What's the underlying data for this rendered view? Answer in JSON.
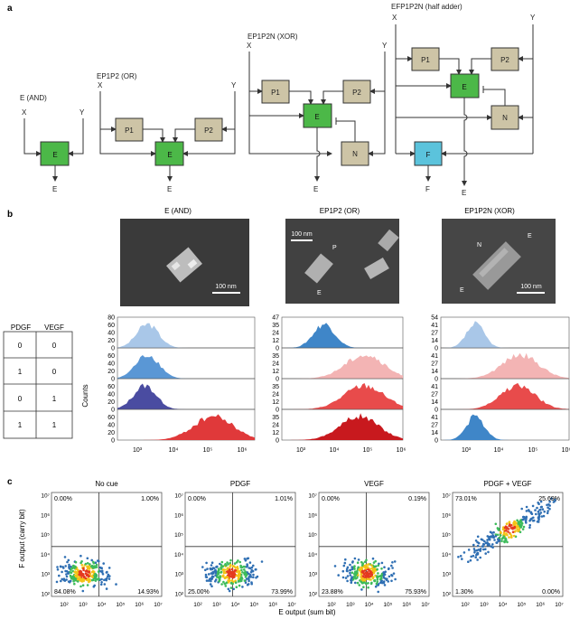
{
  "panel_labels": {
    "a": "a",
    "b": "b",
    "c": "c"
  },
  "panel_a": {
    "circuits": [
      {
        "title": "E (AND)",
        "inputs": [
          "X",
          "Y"
        ],
        "outputs": [
          "E"
        ]
      },
      {
        "title": "EP1P2 (OR)",
        "inputs": [
          "X",
          "Y"
        ],
        "outputs": [
          "E"
        ]
      },
      {
        "title": "EP1P2N (XOR)",
        "inputs": [
          "X",
          "Y"
        ],
        "outputs": [
          "E"
        ]
      },
      {
        "title": "EFP1P2N (half adder)",
        "inputs": [
          "X",
          "Y"
        ],
        "outputs": [
          "F",
          "E"
        ]
      }
    ],
    "box_labels": {
      "E": "E",
      "P1": "P1",
      "P2": "P2",
      "N": "N",
      "F": "F"
    },
    "colors": {
      "E": "#4cb848",
      "P": "#cdc4a6",
      "N": "#cdc4a6",
      "F": "#5bc3dc"
    }
  },
  "panel_b": {
    "images": [
      {
        "title": "E (AND)",
        "scale": "100 nm",
        "letters": []
      },
      {
        "title": "EP1P2 (OR)",
        "scale": "100 nm",
        "letters": [
          "P",
          "E"
        ]
      },
      {
        "title": "EP1P2N (XOR)",
        "scale": "100 nm",
        "letters": [
          "N",
          "E",
          "E"
        ]
      }
    ],
    "truth_table": {
      "headers": [
        "PDGF",
        "VEGF"
      ],
      "rows": [
        [
          "0",
          "0"
        ],
        [
          "1",
          "0"
        ],
        [
          "0",
          "1"
        ],
        [
          "1",
          "1"
        ]
      ]
    },
    "ylabel": "Counts",
    "x_ticks": [
      "10³",
      "10⁴",
      "10⁵",
      "10⁶"
    ],
    "y_ticks": [
      [
        "80",
        "60",
        "40",
        "20",
        "0"
      ],
      [
        "47",
        "35",
        "24",
        "12",
        "0"
      ],
      [
        "54",
        "41",
        "27",
        "14",
        "0"
      ]
    ]
  },
  "panel_c": {
    "plots": [
      {
        "title": "No cue",
        "quadrants": [
          "0.00%",
          "1.00%",
          "84.08%",
          "14.93%"
        ]
      },
      {
        "title": "PDGF",
        "quadrants": [
          "0.00%",
          "1.01%",
          "25.00%",
          "73.99%"
        ]
      },
      {
        "title": "VEGF",
        "quadrants": [
          "0.00%",
          "0.19%",
          "23.88%",
          "75.93%"
        ]
      },
      {
        "title": "PDGF + VEGF",
        "quadrants": [
          "73.01%",
          "25.69%",
          "1.30%",
          "0.00%"
        ]
      }
    ],
    "y_ticks": [
      "10⁷",
      "10⁶",
      "10⁵",
      "10⁴",
      "10³",
      "10²"
    ],
    "x_ticks": [
      "10²",
      "10³",
      "10⁴",
      "10⁵",
      "10⁶",
      "10⁷"
    ],
    "ylabel": "F output (carry bit)",
    "xlabel": "E output (sum bit)"
  }
}
